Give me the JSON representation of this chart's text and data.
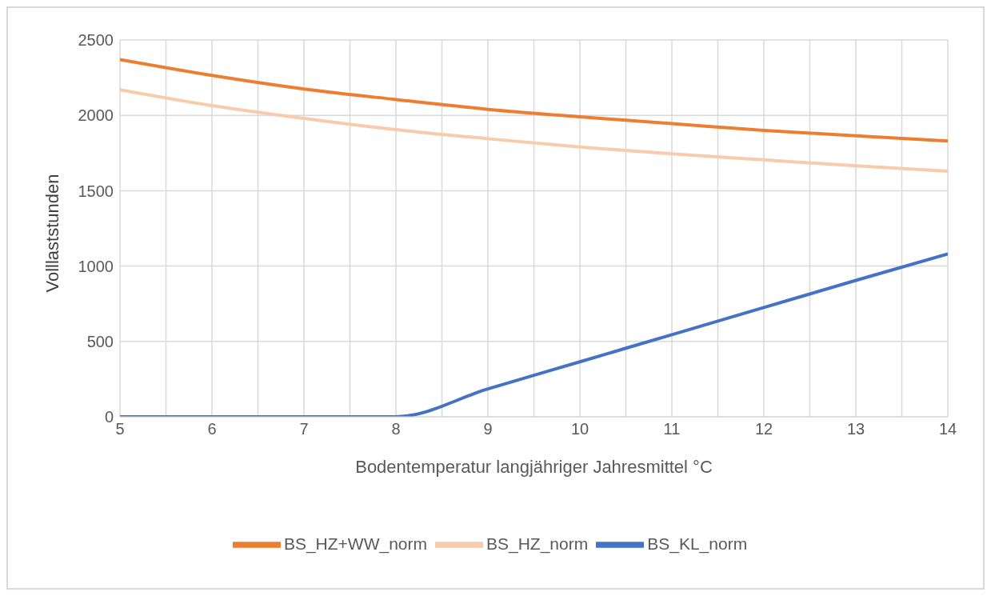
{
  "chart_data": {
    "type": "line",
    "xlabel": "Bodentemperatur langjähriger Jahresmittel °C",
    "ylabel": "Volllaststunden",
    "x": [
      5,
      6,
      7,
      8,
      9,
      10,
      11,
      12,
      13,
      14
    ],
    "series": [
      {
        "name": "BS_HZ_norm",
        "color": "#f8cbad",
        "values": [
          2170,
          2065,
          1980,
          1905,
          1845,
          1790,
          1745,
          1705,
          1665,
          1630
        ]
      },
      {
        "name": "BS_HZ+WW_norm",
        "color": "#ed7d31",
        "values": [
          2370,
          2265,
          2175,
          2105,
          2040,
          1990,
          1945,
          1900,
          1865,
          1830
        ]
      },
      {
        "name": "BS_KL_norm",
        "color": "#4472c4",
        "values": [
          0,
          0,
          0,
          0,
          185,
          365,
          545,
          725,
          905,
          1080
        ]
      }
    ],
    "xlim": [
      5,
      14
    ],
    "xticks": [
      5,
      {
        "value": 5.5,
        "label": null
      },
      6,
      {
        "value": 6.5,
        "label": null
      },
      7,
      {
        "value": 7.5,
        "label": null
      },
      8,
      {
        "value": 8.5,
        "label": null
      },
      9,
      {
        "value": 9.5,
        "label": null
      },
      10,
      {
        "value": 10.5,
        "label": null
      },
      11,
      {
        "value": 11.5,
        "label": null
      },
      12,
      {
        "value": 12.5,
        "label": null
      },
      13,
      {
        "value": 13.5,
        "label": null
      },
      14
    ],
    "ylim": [
      0,
      2500
    ],
    "yticks": [
      0,
      500,
      1000,
      1500,
      2000,
      2500
    ],
    "grid": true,
    "legend": "bottom",
    "marker": "none",
    "line_style": "solid"
  }
}
